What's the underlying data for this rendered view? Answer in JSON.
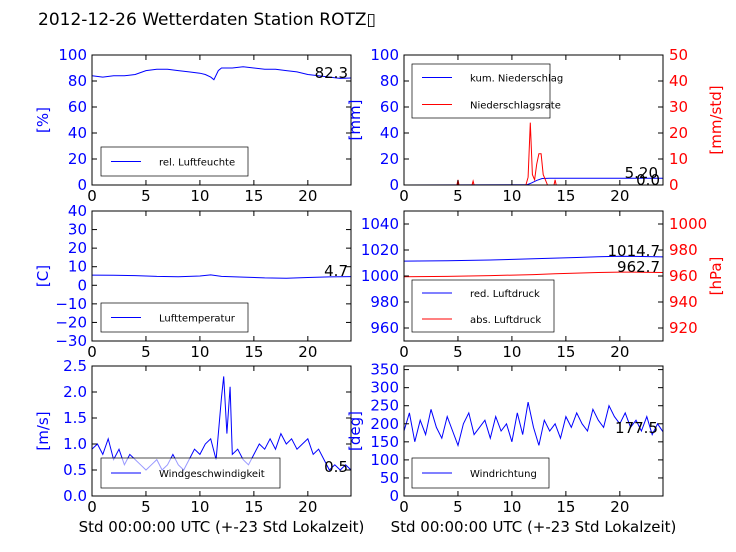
{
  "page": {
    "title": "2012-12-26 Wetterdaten Station ROTZ▯"
  },
  "colors": {
    "primary": "#0000ff",
    "secondary": "#ff0000",
    "frame": "#000000"
  },
  "chart_data": [
    {
      "id": "humidity",
      "type": "line",
      "xlim": [
        0,
        24
      ],
      "ylim": [
        0,
        100
      ],
      "xticks": [
        "0",
        "5",
        "10",
        "15",
        "20"
      ],
      "yticks": [
        "0",
        "20",
        "40",
        "60",
        "80",
        "100"
      ],
      "xlabel": "",
      "ylabel": "[%]",
      "legend": "bottom-left",
      "series": [
        {
          "name": "rel. Luftfeuchte",
          "color": "#0000ff",
          "x": [
            0,
            1,
            2,
            3,
            4,
            5,
            6,
            7,
            8,
            9,
            10,
            10.5,
            11,
            11.3,
            11.7,
            12,
            13,
            14,
            15,
            16,
            17,
            18,
            19,
            20,
            21,
            22,
            23,
            24
          ],
          "y": [
            84,
            83,
            84,
            84,
            85,
            88,
            89,
            89,
            88,
            87,
            86,
            85,
            83,
            81,
            88,
            90,
            90,
            91,
            90,
            89,
            89,
            88,
            87,
            85,
            84,
            83,
            82,
            82.3
          ]
        }
      ],
      "annotations": [
        "82.3"
      ]
    },
    {
      "id": "precipitation",
      "type": "line",
      "xlim": [
        0,
        24
      ],
      "ylim": [
        0,
        100
      ],
      "ylim_right": [
        0,
        50
      ],
      "xticks": [
        "0",
        "5",
        "10",
        "15",
        "20"
      ],
      "yticks": [
        "0",
        "20",
        "40",
        "60",
        "80",
        "100"
      ],
      "yticks_right": [
        "0",
        "10",
        "20",
        "30",
        "40",
        "50"
      ],
      "xlabel": "",
      "ylabel": "[mm]",
      "ylabel_right": "[mm/std]",
      "legend": "top-left",
      "series": [
        {
          "name": "kum. Niederschlag",
          "color": "#0000ff",
          "axis": "left",
          "x": [
            0,
            11.4,
            11.8,
            12.3,
            12.8,
            13.5,
            24
          ],
          "y": [
            0,
            0.2,
            1.5,
            3.5,
            5,
            5.2,
            5.2
          ]
        },
        {
          "name": "Niederschlagsrate",
          "color": "#ff0000",
          "axis": "right",
          "x": [
            0,
            4.9,
            5.0,
            5.1,
            6.3,
            6.4,
            6.5,
            11.3,
            11.5,
            11.7,
            11.9,
            12.1,
            12.3,
            12.5,
            12.7,
            12.9,
            13.1,
            13.3,
            13.9,
            14.0,
            14.1,
            24
          ],
          "y": [
            0,
            0,
            2,
            0,
            0,
            1.5,
            0,
            0,
            3,
            24,
            4,
            2,
            8,
            12,
            12,
            4,
            2,
            0,
            0,
            2,
            0,
            0
          ]
        }
      ],
      "annotations": [
        "5.20",
        "0.0"
      ]
    },
    {
      "id": "temperature",
      "type": "line",
      "xlim": [
        0,
        24
      ],
      "ylim": [
        -30,
        40
      ],
      "xticks": [
        "0",
        "5",
        "10",
        "15",
        "20"
      ],
      "yticks": [
        "−30",
        "−20",
        "−10",
        "0",
        "10",
        "20",
        "30",
        "40"
      ],
      "xlabel": "",
      "ylabel": "[C]",
      "legend": "bottom-left",
      "series": [
        {
          "name": "Lufttemperatur",
          "color": "#0000ff",
          "x": [
            0,
            2,
            4,
            6,
            8,
            10,
            11,
            12,
            14,
            16,
            18,
            20,
            22,
            24
          ],
          "y": [
            5.5,
            5.4,
            5.2,
            4.8,
            4.6,
            5.0,
            5.6,
            4.8,
            4.4,
            4.0,
            3.8,
            4.2,
            4.5,
            4.7
          ]
        }
      ],
      "annotations": [
        "4.7"
      ]
    },
    {
      "id": "pressure",
      "type": "line",
      "xlim": [
        0,
        24
      ],
      "ylim": [
        950,
        1050
      ],
      "ylim_right": [
        910,
        1010
      ],
      "xticks": [
        "0",
        "5",
        "10",
        "15",
        "20"
      ],
      "yticks": [
        "960",
        "980",
        "1000",
        "1020",
        "1040"
      ],
      "yticks_right": [
        "920",
        "940",
        "960",
        "980",
        "1000"
      ],
      "xlabel": "",
      "ylabel": "",
      "ylabel_right": "[hPa]",
      "legend": "bottom-left",
      "series": [
        {
          "name": "red. Luftdruck",
          "color": "#0000ff",
          "axis": "left",
          "x": [
            0,
            4,
            8,
            12,
            14,
            16,
            18,
            20,
            22,
            24
          ],
          "y": [
            1011.5,
            1011.8,
            1012.3,
            1013.2,
            1013.8,
            1014.2,
            1014.8,
            1015.2,
            1015.0,
            1014.7
          ]
        },
        {
          "name": "abs. Luftdruck",
          "color": "#ff0000",
          "axis": "right",
          "x": [
            0,
            4,
            8,
            12,
            14,
            16,
            18,
            20,
            22,
            24
          ],
          "y": [
            959.4,
            959.7,
            960.3,
            961.1,
            961.8,
            962.2,
            962.7,
            963.0,
            962.9,
            962.7
          ]
        }
      ],
      "annotations": [
        "1014.7",
        "962.7"
      ]
    },
    {
      "id": "wind-speed",
      "type": "line",
      "xlim": [
        0,
        24
      ],
      "ylim": [
        0,
        2.5
      ],
      "xticks": [
        "0",
        "5",
        "10",
        "15",
        "20"
      ],
      "yticks": [
        "0.0",
        "0.5",
        "1.0",
        "1.5",
        "2.0",
        "2.5"
      ],
      "xlabel": "Std 00:00:00 UTC (+-23 Std Lokalzeit)",
      "ylabel": "[m/s]",
      "legend": "bottom-left",
      "series": [
        {
          "name": "Windgeschwindigkeit",
          "color": "#0000ff",
          "x": [
            0,
            0.5,
            1,
            1.5,
            2,
            2.5,
            3,
            3.5,
            4,
            4.5,
            5,
            5.5,
            6,
            6.5,
            7,
            7.5,
            8,
            8.5,
            9,
            9.5,
            10,
            10.5,
            11,
            11.5,
            12,
            12.2,
            12.5,
            12.8,
            13,
            13.5,
            14,
            14.5,
            15,
            15.5,
            16,
            16.5,
            17,
            17.5,
            18,
            18.5,
            19,
            19.5,
            20,
            20.5,
            21,
            21.5,
            22,
            22.5,
            23,
            23.5,
            24
          ],
          "y": [
            0.9,
            1.0,
            0.8,
            1.1,
            0.7,
            0.9,
            0.6,
            0.8,
            0.7,
            0.6,
            0.5,
            0.6,
            0.7,
            0.5,
            0.6,
            0.8,
            0.6,
            0.5,
            0.7,
            0.9,
            0.8,
            1.0,
            1.1,
            0.7,
            1.9,
            2.3,
            1.2,
            2.1,
            0.8,
            0.9,
            0.7,
            0.6,
            0.8,
            1.0,
            0.9,
            1.1,
            0.9,
            1.2,
            1.0,
            1.1,
            0.9,
            1.0,
            1.1,
            0.8,
            0.9,
            0.7,
            0.5,
            0.6,
            0.5,
            0.6,
            0.5
          ]
        }
      ],
      "annotations": [
        "0.5"
      ]
    },
    {
      "id": "wind-direction",
      "type": "line",
      "xlim": [
        0,
        24
      ],
      "ylim": [
        0,
        360
      ],
      "xticks": [
        "0",
        "5",
        "10",
        "15",
        "20"
      ],
      "yticks": [
        "0",
        "50",
        "100",
        "150",
        "200",
        "250",
        "300",
        "350"
      ],
      "xlabel": "Std 00:00:00 UTC (+-23 Std Lokalzeit)",
      "ylabel": "[deg]",
      "legend": "bottom-left",
      "series": [
        {
          "name": "Windrichtung",
          "color": "#0000ff",
          "x": [
            0,
            0.5,
            1,
            1.5,
            2,
            2.5,
            3,
            3.5,
            4,
            4.5,
            5,
            5.5,
            6,
            6.5,
            7,
            7.5,
            8,
            8.5,
            9,
            9.5,
            10,
            10.5,
            11,
            11.5,
            12,
            12.5,
            13,
            13.5,
            14,
            14.5,
            15,
            15.5,
            16,
            16.5,
            17,
            17.5,
            18,
            18.5,
            19,
            19.5,
            20,
            20.5,
            21,
            21.5,
            22,
            22.5,
            23,
            23.5,
            24
          ],
          "y": [
            180,
            230,
            150,
            210,
            170,
            240,
            190,
            160,
            220,
            180,
            140,
            200,
            230,
            170,
            190,
            210,
            160,
            220,
            180,
            200,
            150,
            230,
            170,
            260,
            190,
            140,
            210,
            180,
            200,
            160,
            220,
            190,
            230,
            200,
            180,
            240,
            210,
            190,
            250,
            220,
            200,
            230,
            190,
            210,
            180,
            220,
            170,
            200,
            177.5
          ]
        }
      ],
      "annotations": [
        "177.5"
      ]
    }
  ]
}
